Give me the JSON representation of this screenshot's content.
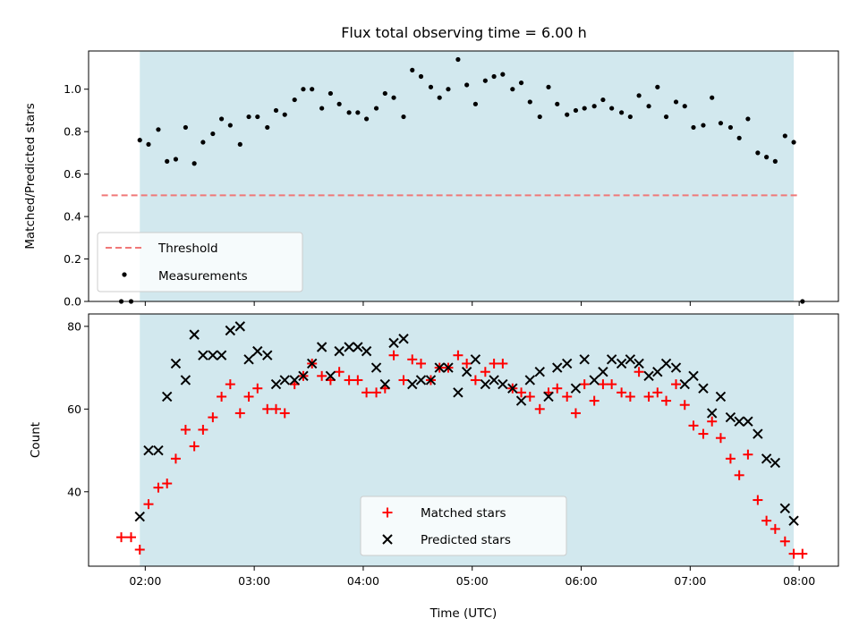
{
  "chart_data": [
    {
      "type": "scatter",
      "title": "Flux total observing time = 6.00 h",
      "xlabel": "",
      "ylabel": "Matched/Predicted stars",
      "ylim": [
        0,
        1.18
      ],
      "yticks": [
        0.0,
        0.2,
        0.4,
        0.6,
        0.8,
        1.0
      ],
      "ytick_labels": [
        "0.0",
        "0.2",
        "0.4",
        "0.6",
        "0.8",
        "1.0"
      ],
      "xlim_hours": [
        1.48,
        8.36
      ],
      "observing_span_hours": [
        1.95,
        7.95
      ],
      "shaded_color": "#d2e8ee",
      "legend_position": "lower-left",
      "threshold": {
        "name": "Threshold",
        "value": 0.5,
        "color": "#f07878",
        "style": "dashed"
      },
      "series": [
        {
          "name": "Measurements",
          "color": "#000000",
          "marker": "dot",
          "x": [
            1.78,
            1.87,
            1.95,
            2.03,
            2.12,
            2.2,
            2.28,
            2.37,
            2.45,
            2.53,
            2.62,
            2.7,
            2.78,
            2.87,
            2.95,
            3.03,
            3.12,
            3.2,
            3.28,
            3.37,
            3.45,
            3.53,
            3.62,
            3.7,
            3.78,
            3.87,
            3.95,
            4.03,
            4.12,
            4.2,
            4.28,
            4.37,
            4.45,
            4.53,
            4.62,
            4.7,
            4.78,
            4.87,
            4.95,
            5.03,
            5.12,
            5.2,
            5.28,
            5.37,
            5.45,
            5.53,
            5.62,
            5.7,
            5.78,
            5.87,
            5.95,
            6.03,
            6.12,
            6.2,
            6.28,
            6.37,
            6.45,
            6.53,
            6.62,
            6.7,
            6.78,
            6.87,
            6.95,
            7.03,
            7.12,
            7.2,
            7.28,
            7.37,
            7.45,
            7.53,
            7.62,
            7.7,
            7.78,
            7.87,
            7.95,
            8.03
          ],
          "y": [
            0.0,
            0.0,
            0.76,
            0.74,
            0.81,
            0.66,
            0.67,
            0.82,
            0.65,
            0.75,
            0.79,
            0.86,
            0.83,
            0.74,
            0.87,
            0.87,
            0.82,
            0.9,
            0.88,
            0.95,
            1.0,
            1.0,
            0.91,
            0.98,
            0.93,
            0.89,
            0.89,
            0.86,
            0.91,
            0.98,
            0.96,
            0.87,
            1.09,
            1.06,
            1.01,
            0.96,
            1.0,
            1.14,
            1.02,
            0.93,
            1.04,
            1.06,
            1.07,
            1.0,
            1.03,
            0.94,
            0.87,
            1.01,
            0.93,
            0.88,
            0.9,
            0.91,
            0.92,
            0.95,
            0.91,
            0.89,
            0.87,
            0.97,
            0.92,
            1.01,
            0.87,
            0.94,
            0.92,
            0.82,
            0.83,
            0.96,
            0.84,
            0.82,
            0.77,
            0.86,
            0.7,
            0.68,
            0.66,
            0.78,
            0.75,
            0.0
          ]
        }
      ]
    },
    {
      "type": "scatter",
      "title": "",
      "xlabel": "Time (UTC)",
      "ylabel": "Count",
      "ylim": [
        22,
        83
      ],
      "yticks": [
        40,
        60,
        80
      ],
      "ytick_labels": [
        "40",
        "60",
        "80"
      ],
      "xlim_hours": [
        1.48,
        8.36
      ],
      "xticks_hours": [
        2,
        3,
        4,
        5,
        6,
        7,
        8
      ],
      "xtick_labels": [
        "02:00",
        "03:00",
        "04:00",
        "05:00",
        "06:00",
        "07:00",
        "08:00"
      ],
      "observing_span_hours": [
        1.95,
        7.95
      ],
      "shaded_color": "#d2e8ee",
      "legend_position": "lower-center",
      "series": [
        {
          "name": "Matched stars",
          "color": "#ff0000",
          "marker": "plus",
          "x": [
            1.78,
            1.87,
            1.95,
            2.03,
            2.12,
            2.2,
            2.28,
            2.37,
            2.45,
            2.53,
            2.62,
            2.7,
            2.78,
            2.87,
            2.95,
            3.03,
            3.12,
            3.2,
            3.28,
            3.37,
            3.45,
            3.53,
            3.62,
            3.7,
            3.78,
            3.87,
            3.95,
            4.03,
            4.12,
            4.2,
            4.28,
            4.37,
            4.45,
            4.53,
            4.62,
            4.7,
            4.78,
            4.87,
            4.95,
            5.03,
            5.12,
            5.2,
            5.28,
            5.37,
            5.45,
            5.53,
            5.62,
            5.7,
            5.78,
            5.87,
            5.95,
            6.03,
            6.12,
            6.2,
            6.28,
            6.37,
            6.45,
            6.53,
            6.62,
            6.7,
            6.78,
            6.87,
            6.95,
            7.03,
            7.12,
            7.2,
            7.28,
            7.37,
            7.45,
            7.53,
            7.62,
            7.7,
            7.78,
            7.87,
            7.95,
            8.03
          ],
          "y": [
            29,
            29,
            26,
            37,
            41,
            42,
            48,
            55,
            51,
            55,
            58,
            63,
            66,
            59,
            63,
            65,
            60,
            60,
            59,
            66,
            68,
            71,
            68,
            67,
            69,
            67,
            67,
            64,
            64,
            65,
            73,
            67,
            72,
            71,
            67,
            70,
            70,
            73,
            71,
            67,
            69,
            71,
            71,
            65,
            64,
            63,
            60,
            64,
            65,
            63,
            59,
            66,
            62,
            66,
            66,
            64,
            63,
            69,
            63,
            64,
            62,
            66,
            61,
            56,
            54,
            57,
            53,
            48,
            44,
            49,
            38,
            33,
            31,
            28,
            25,
            25
          ]
        },
        {
          "name": "Predicted stars",
          "color": "#000000",
          "marker": "x",
          "x": [
            1.95,
            2.03,
            2.12,
            2.2,
            2.28,
            2.37,
            2.45,
            2.53,
            2.62,
            2.7,
            2.78,
            2.87,
            2.95,
            3.03,
            3.12,
            3.2,
            3.28,
            3.37,
            3.45,
            3.53,
            3.62,
            3.7,
            3.78,
            3.87,
            3.95,
            4.03,
            4.12,
            4.2,
            4.28,
            4.37,
            4.45,
            4.53,
            4.62,
            4.7,
            4.78,
            4.87,
            4.95,
            5.03,
            5.12,
            5.2,
            5.28,
            5.37,
            5.45,
            5.53,
            5.62,
            5.7,
            5.78,
            5.87,
            5.95,
            6.03,
            6.12,
            6.2,
            6.28,
            6.37,
            6.45,
            6.53,
            6.62,
            6.7,
            6.78,
            6.87,
            6.95,
            7.03,
            7.12,
            7.2,
            7.28,
            7.37,
            7.45,
            7.53,
            7.62,
            7.7,
            7.78,
            7.87,
            7.95
          ],
          "y": [
            34,
            50,
            50,
            63,
            71,
            67,
            78,
            73,
            73,
            73,
            79,
            80,
            72,
            74,
            73,
            66,
            67,
            67,
            68,
            71,
            75,
            68,
            74,
            75,
            75,
            74,
            70,
            66,
            76,
            77,
            66,
            67,
            67,
            70,
            70,
            64,
            69,
            72,
            66,
            67,
            66,
            65,
            62,
            67,
            69,
            63,
            70,
            71,
            65,
            72,
            67,
            69,
            72,
            71,
            72,
            71,
            68,
            69,
            71,
            70,
            66,
            68,
            65,
            59,
            63,
            58,
            57,
            57,
            54,
            48,
            47,
            36,
            33
          ]
        }
      ]
    }
  ]
}
